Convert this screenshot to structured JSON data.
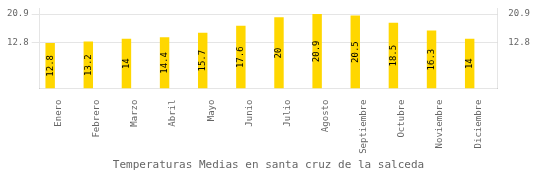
{
  "chart_data": {
    "type": "bar",
    "title": "Temperaturas Medias en santa cruz de la salceda",
    "categories": [
      "Enero",
      "Febrero",
      "Marzo",
      "Abril",
      "Mayo",
      "Junio",
      "Julio",
      "Agosto",
      "Septiembre",
      "Octubre",
      "Noviembre",
      "Diciembre"
    ],
    "values": [
      12.8,
      13.2,
      14.0,
      14.4,
      15.7,
      17.6,
      20.0,
      20.9,
      20.5,
      18.5,
      16.3,
      14.0
    ],
    "color": "#FFD700",
    "ylim": [
      0,
      22.5
    ],
    "yticks": [
      12.8,
      20.9
    ],
    "y2lim": [
      0,
      22.5
    ],
    "y2ticks": [
      12.8,
      20.9
    ],
    "grid": true,
    "data_labels": true
  }
}
